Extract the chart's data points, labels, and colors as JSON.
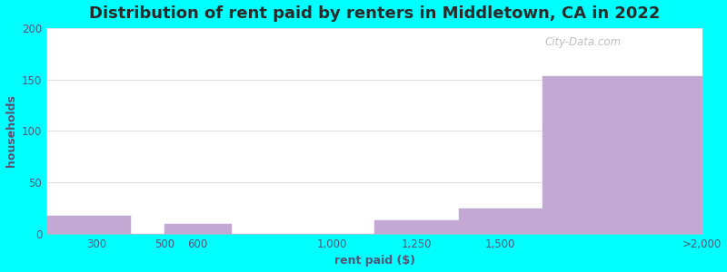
{
  "title": "Distribution of rent paid by renters in Middletown, CA in 2022",
  "bin_edges": [
    150,
    400,
    500,
    700,
    1125,
    1375,
    1625,
    2100
  ],
  "values": [
    18,
    0,
    10,
    0,
    13,
    25,
    153
  ],
  "tick_positions": [
    300,
    500,
    600,
    1000,
    1250,
    1500,
    2100
  ],
  "tick_labels": [
    "300",
    "500",
    "600",
    "1,000",
    "1,250",
    "1,500",
    ">2,000"
  ],
  "bar_color": "#c4a8d4",
  "bar_edge_color": "#c4a8d4",
  "xlabel": "rent paid ($)",
  "ylabel": "households",
  "ylim": [
    0,
    200
  ],
  "yticks": [
    0,
    50,
    100,
    150,
    200
  ],
  "background_outer": "#00ffff",
  "plot_bg_bottom_left": "#d4edc4",
  "plot_bg_top_right": "#ffffff",
  "title_color": "#2a2a2a",
  "label_color": "#555577",
  "grid_color": "#e0e0e0",
  "title_fontsize": 13,
  "label_fontsize": 9,
  "tick_fontsize": 8.5,
  "watermark": "City-Data.com"
}
